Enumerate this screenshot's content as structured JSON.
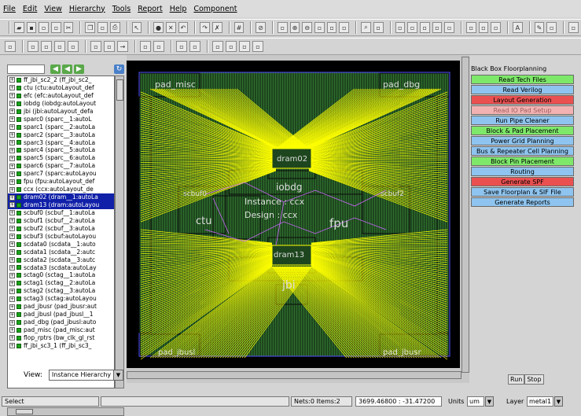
{
  "menu": [
    "File",
    "Edit",
    "View",
    "Hierarchy",
    "Tools",
    "Report",
    "Help",
    "Component"
  ],
  "toolbar1_icons": [
    "open-icon",
    "save-icon",
    "save-as-icon",
    "close-icon",
    "cut-icon",
    "copy-icon",
    "paste-icon",
    "print-icon",
    "select-icon",
    "record-icon",
    "delete-x-icon",
    "undo-icon",
    "redo-icon",
    "cross-icon",
    "grid-icon",
    "stop-icon",
    "measure-icon",
    "zoom-in-icon",
    "zoom-out-icon",
    "zoom-area-icon",
    "zoom-fit-icon",
    "zoom-prev-icon",
    "find-icon",
    "select-all-icon",
    "layer1-icon",
    "layer2-icon",
    "layer3-icon",
    "layer4-icon",
    "layer5-icon",
    "cell1-icon",
    "cell2-icon",
    "cell3-icon",
    "text-A-icon",
    "pen-icon",
    "tool-icon",
    "extra-icon"
  ],
  "toolbar2_icons": [
    "config-icon",
    "block1-icon",
    "block2-icon",
    "block3-icon",
    "pin-icon",
    "align-icon",
    "distribute-icon",
    "arrow-icon",
    "move-icon",
    "rect1-icon",
    "rect2-icon",
    "flip-icon",
    "rotate-icon",
    "copy2-icon",
    "stack-icon",
    "array-icon"
  ],
  "tree": {
    "items": [
      {
        "label": "ff_jbi_sc2_2 (ff_jbi_sc2_",
        "sel": false
      },
      {
        "label": "ctu (ctu:autoLayout_def",
        "sel": false
      },
      {
        "label": "efc (efc:autoLayout_def",
        "sel": false
      },
      {
        "label": "iobdg (iobdg:autoLayout",
        "sel": false
      },
      {
        "label": "jbi (jbi:autoLayout_defa",
        "sel": false
      },
      {
        "label": "sparc0 (sparc__1:autoL",
        "sel": false
      },
      {
        "label": "sparc1 (sparc__2:autoLa",
        "sel": false
      },
      {
        "label": "sparc2 (sparc__3:autoLa",
        "sel": false
      },
      {
        "label": "sparc3 (sparc__4:autoLa",
        "sel": false
      },
      {
        "label": "sparc4 (sparc__5:autoLa",
        "sel": false
      },
      {
        "label": "sparc5 (sparc__6:autoLa",
        "sel": false
      },
      {
        "label": "sparc6 (sparc__7:autoLa",
        "sel": false
      },
      {
        "label": "sparc7 (sparc:autoLayou",
        "sel": false
      },
      {
        "label": "fpu (fpu:autoLayout_def",
        "sel": false
      },
      {
        "label": "ccx (ccx:autoLayout_de",
        "sel": false
      },
      {
        "label": "dram02 (dram__1:autoLa",
        "sel": true
      },
      {
        "label": "dram13 (dram:autoLayou",
        "sel": true
      },
      {
        "label": "scbuf0 (scbuf__1:autoLa",
        "sel": false
      },
      {
        "label": "scbuf1 (scbuf__2:autoLa",
        "sel": false
      },
      {
        "label": "scbuf2 (scbuf__3:autoLa",
        "sel": false
      },
      {
        "label": "scbuf3 (scbuf:autoLayou",
        "sel": false
      },
      {
        "label": "scdata0 (scdata__1:auto",
        "sel": false
      },
      {
        "label": "scdata1 (scdata__2:autc",
        "sel": false
      },
      {
        "label": "scdata2 (scdata__3:autc",
        "sel": false
      },
      {
        "label": "scdata3 (scdata:autoLay",
        "sel": false
      },
      {
        "label": "sctag0 (sctag__1:autoLa",
        "sel": false
      },
      {
        "label": "sctag1 (sctag__2:autoLa",
        "sel": false
      },
      {
        "label": "sctag2 (sctag__3:autoLa",
        "sel": false
      },
      {
        "label": "sctag3 (sctag:autoLayou",
        "sel": false
      },
      {
        "label": "pad_jbusr (pad_jbusr:aut",
        "sel": false
      },
      {
        "label": "pad_jbusl (pad_jbusl__1",
        "sel": false
      },
      {
        "label": "pad_dbg (pad_jbusl:auto",
        "sel": false
      },
      {
        "label": "pad_misc (pad_misc:aut",
        "sel": false
      },
      {
        "label": "flop_rptrs (bw_clk_gl_rst",
        "sel": false
      },
      {
        "label": "ff_jbi_sc3_1 (ff_jbi_sc3_",
        "sel": false
      }
    ]
  },
  "view": {
    "label": "View:",
    "value": "Instance Hierarchy"
  },
  "canvas_labels": {
    "pad_misc": "pad_misc",
    "pad_dbg": "pad_dbg",
    "dram02": "dram02",
    "iobdg": "iobdg",
    "scbuf0": "scbuf0",
    "scbuf2": "scbuf2",
    "ctu": "ctu",
    "instance": "Instance : ccx",
    "design": "Design : ccx",
    "fpu": "fpu",
    "dram13": "dram13",
    "jbi": "jbi",
    "pad_jbusl": "pad_jbusl",
    "pad_jbusr": "pad_jbusr"
  },
  "flow": {
    "title": "Black Box Floorplanning",
    "steps": [
      {
        "label": "Read Tech Files",
        "color": "g"
      },
      {
        "label": "Read Verilog",
        "color": "b"
      },
      {
        "label": "Layout Generation",
        "color": "r"
      },
      {
        "label": "Read IO Pad Setup",
        "color": "p"
      },
      {
        "label": "Run Pipe Cleaner",
        "color": "b"
      },
      {
        "label": "Block & Pad Placement",
        "color": "g"
      },
      {
        "label": "Power Grid Planning",
        "color": "b"
      },
      {
        "label": "Bus & Repeater Cell Planning",
        "color": "b"
      },
      {
        "label": "Block Pin Placement",
        "color": "g"
      },
      {
        "label": "Routing",
        "color": "b"
      },
      {
        "label": "Generate SPF",
        "color": "r"
      },
      {
        "label": "Save Floorplan & SIF File",
        "color": "b"
      },
      {
        "label": "Generate Reports",
        "color": "b"
      }
    ]
  },
  "run": "Run",
  "stop": "Stop",
  "status": {
    "mode": "Select",
    "nets_items": "Nets:0 Items:2",
    "coords": "3699.46800 : -31.47200",
    "units_label": "Units",
    "units_value": "um",
    "layer_label": "Layer",
    "layer_value": "metal1"
  },
  "colors": {
    "route": "#ffff00",
    "block_fill": "#1e4a1e",
    "block_stripe": "#2d6b2d",
    "selection": "#1020a8",
    "frame": "#5050ff",
    "ghost": "#cc66ff"
  }
}
